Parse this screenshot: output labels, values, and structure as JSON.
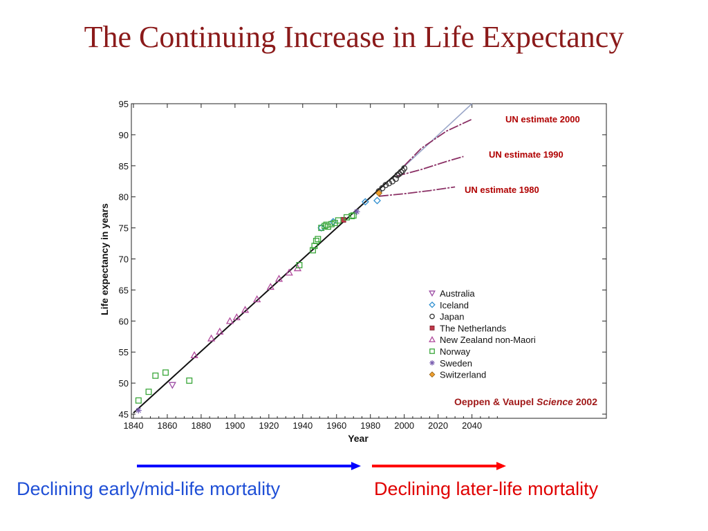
{
  "slide": {
    "title": "The Continuing Increase in Life Expectancy",
    "arrow_left_label": "Declining early/mid-life mortality",
    "arrow_right_label": "Declining later-life mortality",
    "arrow_left_color": "#0000ff",
    "arrow_right_color": "#ff0000"
  },
  "chart_data": {
    "type": "scatter",
    "xlabel": "Year",
    "ylabel": "Life expectancy in years",
    "xlim": [
      1840,
      2060
    ],
    "ylim": [
      45,
      95
    ],
    "xticks": [
      1840,
      1860,
      1880,
      1900,
      1920,
      1940,
      1960,
      1980,
      2000,
      2020,
      2040
    ],
    "yticks": [
      45,
      50,
      55,
      60,
      65,
      70,
      75,
      80,
      85,
      90,
      95
    ],
    "grid": false,
    "legend_position": "lower-right",
    "citation": {
      "prefix": "Oeppen & Vaupel ",
      "journal": "Science",
      "year": " 2002"
    },
    "trend_line": {
      "x": [
        1840,
        2000
      ],
      "y": [
        45.2,
        84.9
      ]
    },
    "extrapolation": {
      "x": [
        2000,
        2040
      ],
      "y": [
        84.9,
        95
      ]
    },
    "projections": [
      {
        "label": "UN estimate 2000",
        "x": [
          2000,
          2010,
          2025,
          2040
        ],
        "y": [
          85.0,
          87.8,
          90.6,
          92.5
        ]
      },
      {
        "label": "UN estimate 1990",
        "x": [
          1995,
          2010,
          2025,
          2035
        ],
        "y": [
          83.3,
          84.4,
          85.7,
          86.5
        ]
      },
      {
        "label": "UN estimate 1980",
        "x": [
          1985,
          2000,
          2015,
          2030
        ],
        "y": [
          80.1,
          80.5,
          81.0,
          81.6
        ]
      }
    ],
    "series": [
      {
        "name": "Australia",
        "marker": "triangle-down",
        "color": "#9b4aa3",
        "points": [
          [
            1863,
            49.7
          ]
        ]
      },
      {
        "name": "Iceland",
        "marker": "diamond",
        "color": "#2f8fd0",
        "points": [
          [
            1951,
            75.0
          ],
          [
            1958,
            76.0
          ],
          [
            1977,
            79.2
          ],
          [
            1984,
            79.4
          ]
        ]
      },
      {
        "name": "Japan",
        "marker": "circle",
        "color": "#333333",
        "points": [
          [
            1985,
            80.9
          ],
          [
            1987,
            81.4
          ],
          [
            1989,
            81.9
          ],
          [
            1991,
            82.2
          ],
          [
            1993,
            82.5
          ],
          [
            1995,
            82.9
          ],
          [
            1996,
            83.5
          ],
          [
            1997,
            83.7
          ],
          [
            1998,
            84.0
          ],
          [
            1999,
            84.2
          ],
          [
            2000,
            84.6
          ]
        ]
      },
      {
        "name": "The Netherlands",
        "marker": "square-filled",
        "color": "#c0384a",
        "points": [
          [
            1964,
            76.3
          ]
        ]
      },
      {
        "name": "New Zealand non-Maori",
        "marker": "triangle-up",
        "color": "#b04a9c",
        "points": [
          [
            1876,
            54.5
          ],
          [
            1886,
            57.2
          ],
          [
            1891,
            58.3
          ],
          [
            1897,
            60.0
          ],
          [
            1901,
            60.6
          ],
          [
            1906,
            61.8
          ],
          [
            1913,
            63.5
          ],
          [
            1921,
            65.5
          ],
          [
            1926,
            66.8
          ],
          [
            1932,
            67.8
          ],
          [
            1937,
            68.5
          ]
        ]
      },
      {
        "name": "Norway",
        "marker": "square-open",
        "color": "#3aa63a",
        "points": [
          [
            1843,
            47.2
          ],
          [
            1849,
            48.6
          ],
          [
            1853,
            51.2
          ],
          [
            1859,
            51.7
          ],
          [
            1873,
            50.4
          ],
          [
            1938,
            69.0
          ],
          [
            1946,
            71.4
          ],
          [
            1947,
            72.1
          ],
          [
            1948,
            72.9
          ],
          [
            1949,
            73.2
          ],
          [
            1951,
            75.0
          ],
          [
            1953,
            75.3
          ],
          [
            1954,
            75.5
          ],
          [
            1955,
            75.2
          ],
          [
            1957,
            75.6
          ],
          [
            1959,
            75.8
          ],
          [
            1961,
            76.2
          ],
          [
            1966,
            76.7
          ],
          [
            1969,
            76.9
          ],
          [
            1970,
            77.0
          ]
        ]
      },
      {
        "name": "Sweden",
        "marker": "asterisk",
        "color": "#7b5fb0",
        "points": [
          [
            1843,
            45.6
          ],
          [
            1972,
            77.6
          ]
        ]
      },
      {
        "name": "Switzerland",
        "marker": "diamond-filled",
        "color": "#f0a030",
        "points": [
          [
            1985,
            80.6
          ]
        ]
      }
    ]
  }
}
